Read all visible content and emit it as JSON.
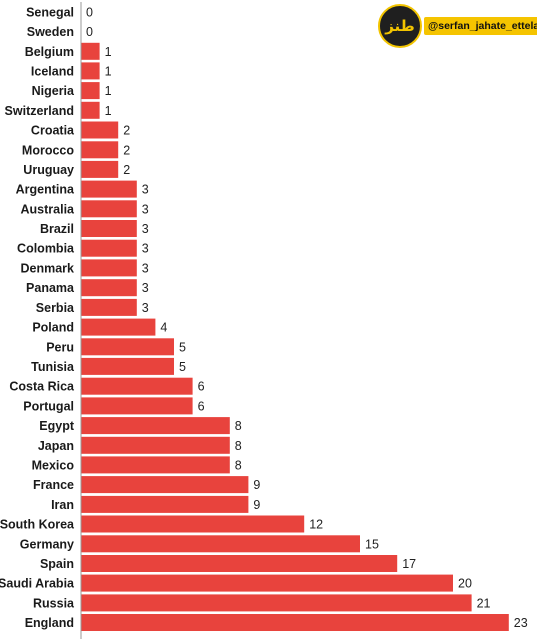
{
  "chart_data": {
    "type": "bar",
    "orientation": "horizontal",
    "categories": [
      "Senegal",
      "Sweden",
      "Belgium",
      "Iceland",
      "Nigeria",
      "Switzerland",
      "Croatia",
      "Morocco",
      "Uruguay",
      "Argentina",
      "Australia",
      "Brazil",
      "Colombia",
      "Denmark",
      "Panama",
      "Serbia",
      "Poland",
      "Peru",
      "Tunisia",
      "Costa Rica",
      "Portugal",
      "Egypt",
      "Japan",
      "Mexico",
      "France",
      "Iran",
      "South Korea",
      "Germany",
      "Spain",
      "Saudi Arabia",
      "Russia",
      "England"
    ],
    "values": [
      0,
      0,
      1,
      1,
      1,
      1,
      2,
      2,
      2,
      3,
      3,
      3,
      3,
      3,
      3,
      3,
      4,
      5,
      5,
      6,
      6,
      8,
      8,
      8,
      9,
      9,
      12,
      15,
      17,
      20,
      21,
      23
    ],
    "xlim": [
      0,
      23
    ],
    "grid": false,
    "data_labels": true,
    "bar_color": "#e8433d",
    "title": "",
    "xlabel": "",
    "ylabel": ""
  },
  "watermark": {
    "handle": "@serfan_jahate_ettela",
    "logo_text": "طنز",
    "logo_color": "#f2c400"
  }
}
